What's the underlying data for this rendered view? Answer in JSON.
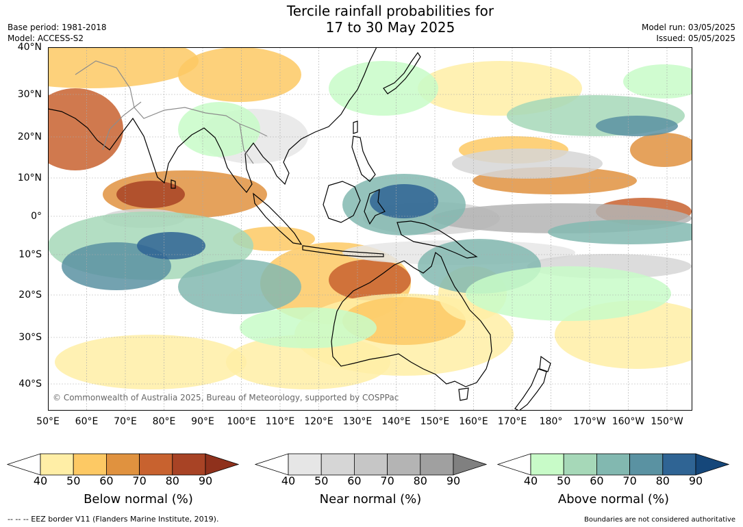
{
  "header": {
    "title_line1": "Tercile rainfall probabilities for",
    "title_line2": "17 to 30 May 2025",
    "base_period": "Base period: 1981-2018",
    "model": "Model: ACCESS-S2",
    "model_run": "Model run: 03/05/2025",
    "issued": "Issued: 05/05/2025"
  },
  "map": {
    "lat_labels": [
      "40°N",
      "30°N",
      "20°N",
      "10°N",
      "0°",
      "10°S",
      "20°S",
      "30°S",
      "40°S"
    ],
    "lon_labels": [
      "50°E",
      "60°E",
      "70°E",
      "80°E",
      "90°E",
      "100°E",
      "110°E",
      "120°E",
      "130°E",
      "140°E",
      "150°E",
      "160°E",
      "170°E",
      "180°",
      "170°W",
      "160°W",
      "150°W"
    ],
    "copyright": "© Commonwealth of Australia 2025, Bureau of Meteorology, supported by COSPPac",
    "land_fill": "#ffffff",
    "coast_color": "#000000",
    "border_color": "#8c8c8c"
  },
  "colorbars": [
    {
      "title": "Below normal (%)",
      "ticks": [
        "40",
        "50",
        "60",
        "70",
        "80",
        "90"
      ],
      "colors": [
        "#ffeea6",
        "#fdc964",
        "#e0923f",
        "#c8622f",
        "#a84325"
      ],
      "overflow": "#8f311c"
    },
    {
      "title": "Near normal (%)",
      "ticks": [
        "40",
        "50",
        "60",
        "70",
        "80",
        "90"
      ],
      "colors": [
        "#e6e6e6",
        "#d6d6d6",
        "#c6c6c6",
        "#b4b4b4",
        "#a0a0a0"
      ],
      "overflow": "#808080"
    },
    {
      "title": "Above normal (%)",
      "ticks": [
        "40",
        "50",
        "60",
        "70",
        "80",
        "90"
      ],
      "colors": [
        "#c8fbc8",
        "#a6d8b8",
        "#82b8b0",
        "#5a92a2",
        "#2f6494"
      ],
      "overflow": "#15477a"
    }
  ],
  "footer": {
    "eez": "--  --  -- EEZ border V11 (Flanders Marine Institute, 2019).",
    "disclaimer": "Boundaries are not considered authoritative"
  }
}
